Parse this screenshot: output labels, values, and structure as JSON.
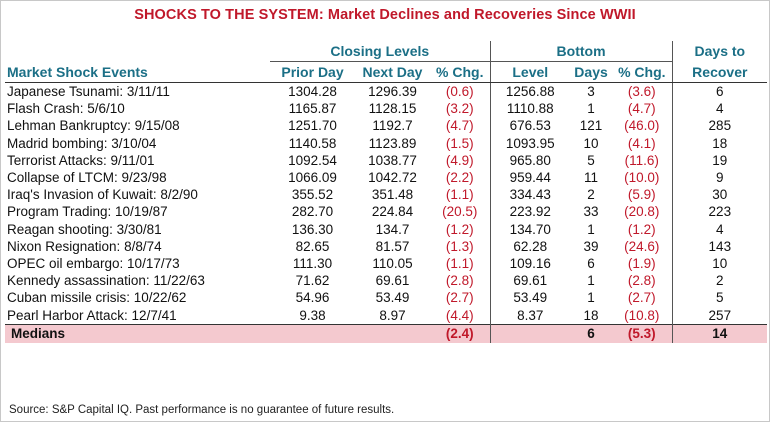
{
  "title": {
    "main": "SHOCKS TO THE SYSTEM:",
    "rest": "Market Declines and Recoveries Since WWII"
  },
  "headers": {
    "closing_levels": "Closing Levels",
    "bottom": "Bottom",
    "days_to": "Days to",
    "event": "Market Shock Events",
    "prior_day": "Prior Day",
    "next_day": "Next Day",
    "pct_chg": "% Chg.",
    "level": "Level",
    "days": "Days",
    "pct_chg2": "% Chg.",
    "recover": "Recover"
  },
  "rows": [
    {
      "event": "Japanese Tsunami: 3/11/11",
      "prior": "1304.28",
      "next": "1296.39",
      "pct": "(0.6)",
      "level": "1256.88",
      "days": "3",
      "pct2": "(3.6)",
      "recover": "6"
    },
    {
      "event": "Flash Crash: 5/6/10",
      "prior": "1165.87",
      "next": "1128.15",
      "pct": "(3.2)",
      "level": "1110.88",
      "days": "1",
      "pct2": "(4.7)",
      "recover": "4"
    },
    {
      "event": "Lehman Bankruptcy: 9/15/08",
      "prior": "1251.70",
      "next": "1192.7",
      "pct": "(4.7)",
      "level": "676.53",
      "days": "121",
      "pct2": "(46.0)",
      "recover": "285"
    },
    {
      "event": "Madrid bombing: 3/10/04",
      "prior": "1140.58",
      "next": "1123.89",
      "pct": "(1.5)",
      "level": "1093.95",
      "days": "10",
      "pct2": "(4.1)",
      "recover": "18"
    },
    {
      "event": "Terrorist Attacks: 9/11/01",
      "prior": "1092.54",
      "next": "1038.77",
      "pct": "(4.9)",
      "level": "965.80",
      "days": "5",
      "pct2": "(11.6)",
      "recover": "19"
    },
    {
      "event": "Collapse of LTCM: 9/23/98",
      "prior": "1066.09",
      "next": "1042.72",
      "pct": "(2.2)",
      "level": "959.44",
      "days": "11",
      "pct2": "(10.0)",
      "recover": "9"
    },
    {
      "event": "Iraq's Invasion of Kuwait: 8/2/90",
      "prior": "355.52",
      "next": "351.48",
      "pct": "(1.1)",
      "level": "334.43",
      "days": "2",
      "pct2": "(5.9)",
      "recover": "30"
    },
    {
      "event": "Program Trading: 10/19/87",
      "prior": "282.70",
      "next": "224.84",
      "pct": "(20.5)",
      "level": "223.92",
      "days": "33",
      "pct2": "(20.8)",
      "recover": "223"
    },
    {
      "event": "Reagan shooting: 3/30/81",
      "prior": "136.30",
      "next": "134.7",
      "pct": "(1.2)",
      "level": "134.70",
      "days": "1",
      "pct2": "(1.2)",
      "recover": "4"
    },
    {
      "event": "Nixon Resignation: 8/8/74",
      "prior": "82.65",
      "next": "81.57",
      "pct": "(1.3)",
      "level": "62.28",
      "days": "39",
      "pct2": "(24.6)",
      "recover": "143"
    },
    {
      "event": "OPEC oil embargo: 10/17/73",
      "prior": "111.30",
      "next": "110.05",
      "pct": "(1.1)",
      "level": "109.16",
      "days": "6",
      "pct2": "(1.9)",
      "recover": "10"
    },
    {
      "event": "Kennedy assassination: 11/22/63",
      "prior": "71.62",
      "next": "69.61",
      "pct": "(2.8)",
      "level": "69.61",
      "days": "1",
      "pct2": "(2.8)",
      "recover": "2"
    },
    {
      "event": "Cuban missile crisis: 10/22/62",
      "prior": "54.96",
      "next": "53.49",
      "pct": "(2.7)",
      "level": "53.49",
      "days": "1",
      "pct2": "(2.7)",
      "recover": "5"
    },
    {
      "event": "Pearl Harbor Attack: 12/7/41",
      "prior": "9.38",
      "next": "8.97",
      "pct": "(4.4)",
      "level": "8.37",
      "days": "18",
      "pct2": "(10.8)",
      "recover": "257"
    }
  ],
  "medians": {
    "label": "Medians",
    "pct": "(2.4)",
    "days": "6",
    "pct2": "(5.3)",
    "recover": "14"
  },
  "source": "Source: S&P Capital IQ. Past performance is no guarantee of future results.",
  "colors": {
    "title_red": "#c0182a",
    "header_teal": "#1b6f86",
    "negative_red": "#c0182a",
    "median_highlight": "#f4c9cf"
  }
}
